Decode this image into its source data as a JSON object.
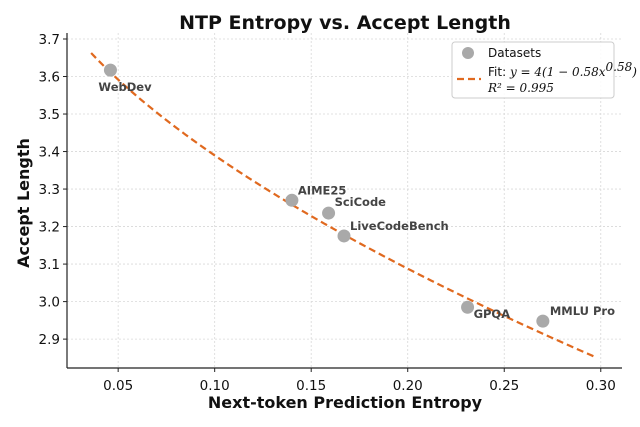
{
  "chart_data": {
    "type": "scatter",
    "title": "NTP Entropy vs. Accept Length",
    "xlabel": "Next-token Prediction Entropy",
    "ylabel": "Accept Length",
    "xlim": [
      0.0235,
      0.311
    ],
    "ylim": [
      2.823,
      3.716
    ],
    "xticks": [
      0.05,
      0.1,
      0.15,
      0.2,
      0.25,
      0.3
    ],
    "xtick_labels": [
      "0.05",
      "0.10",
      "0.15",
      "0.20",
      "0.25",
      "0.30"
    ],
    "yticks": [
      2.9,
      3.0,
      3.1,
      3.2,
      3.3,
      3.4,
      3.5,
      3.6,
      3.7
    ],
    "ytick_labels": [
      "2.9",
      "3.0",
      "3.1",
      "3.2",
      "3.3",
      "3.4",
      "3.5",
      "3.6",
      "3.7"
    ],
    "grid": true,
    "legend_position": "top-right",
    "series": [
      {
        "name": "Datasets",
        "kind": "scatter",
        "color": "#a9a9a9",
        "points": [
          {
            "label": "WebDev",
            "x": 0.046,
            "y": 3.617
          },
          {
            "label": "AIME25",
            "x": 0.14,
            "y": 3.27
          },
          {
            "label": "SciCode",
            "x": 0.159,
            "y": 3.236
          },
          {
            "label": "LiveCodeBench",
            "x": 0.167,
            "y": 3.175
          },
          {
            "label": "GPQA",
            "x": 0.231,
            "y": 2.985
          },
          {
            "label": "MMLU Pro",
            "x": 0.27,
            "y": 2.948
          }
        ]
      },
      {
        "name": "Fit",
        "kind": "line",
        "style": "dashed",
        "color": "#e0691f",
        "formula": {
          "a": 4,
          "b": 0.58,
          "c": 0.58
        },
        "x_range": [
          0.036,
          0.297
        ]
      }
    ],
    "legend": {
      "entries": [
        {
          "label": "Datasets",
          "marker": "circle"
        },
        {
          "label_prefix": "Fit: ",
          "label_math": "y = 4(1 − 0.58x",
          "label_exp": "0.58",
          "label_tail": ")",
          "marker": "dashed-line"
        }
      ],
      "r2_text": "R² = 0.995"
    }
  }
}
